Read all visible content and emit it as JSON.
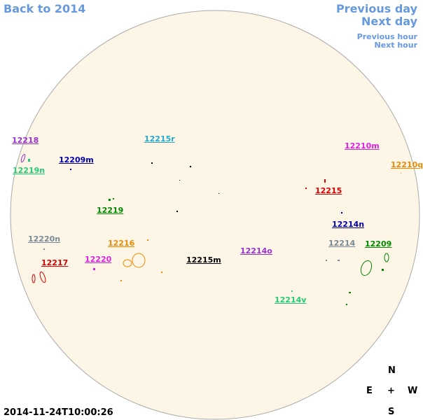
{
  "nav": {
    "back": "Back to 2014",
    "previous_day": "Previous day",
    "next_day": "Next day",
    "previous_hour": "Previous hour",
    "next_hour": "Next hour"
  },
  "timestamp": "2014-11-24T10:00:26",
  "compass": {
    "north": "N",
    "east": "E",
    "center": "+",
    "west": "W",
    "south": "S"
  },
  "regions": [
    {
      "label": "12218",
      "color": "#9933cc"
    },
    {
      "label": "12219n",
      "color": "#22cc77"
    },
    {
      "label": "12209m",
      "color": "#0000aa"
    },
    {
      "label": "12215r",
      "color": "#22aacc"
    },
    {
      "label": "12210m",
      "color": "#dd22dd"
    },
    {
      "label": "12210q",
      "color": "#ee8800"
    },
    {
      "label": "12215",
      "color": "#dd0000"
    },
    {
      "label": "12219",
      "color": "#008800"
    },
    {
      "label": "12214n",
      "color": "#0000aa"
    },
    {
      "label": "12220n",
      "color": "#778899"
    },
    {
      "label": "12216",
      "color": "#ee8800"
    },
    {
      "label": "12214o",
      "color": "#9933cc"
    },
    {
      "label": "12214",
      "color": "#778899"
    },
    {
      "label": "12209",
      "color": "#008800"
    },
    {
      "label": "12220",
      "color": "#dd22dd"
    },
    {
      "label": "12217",
      "color": "#dd0000"
    },
    {
      "label": "12215m",
      "color": "#000000"
    },
    {
      "label": "12214v",
      "color": "#22cc77"
    }
  ]
}
